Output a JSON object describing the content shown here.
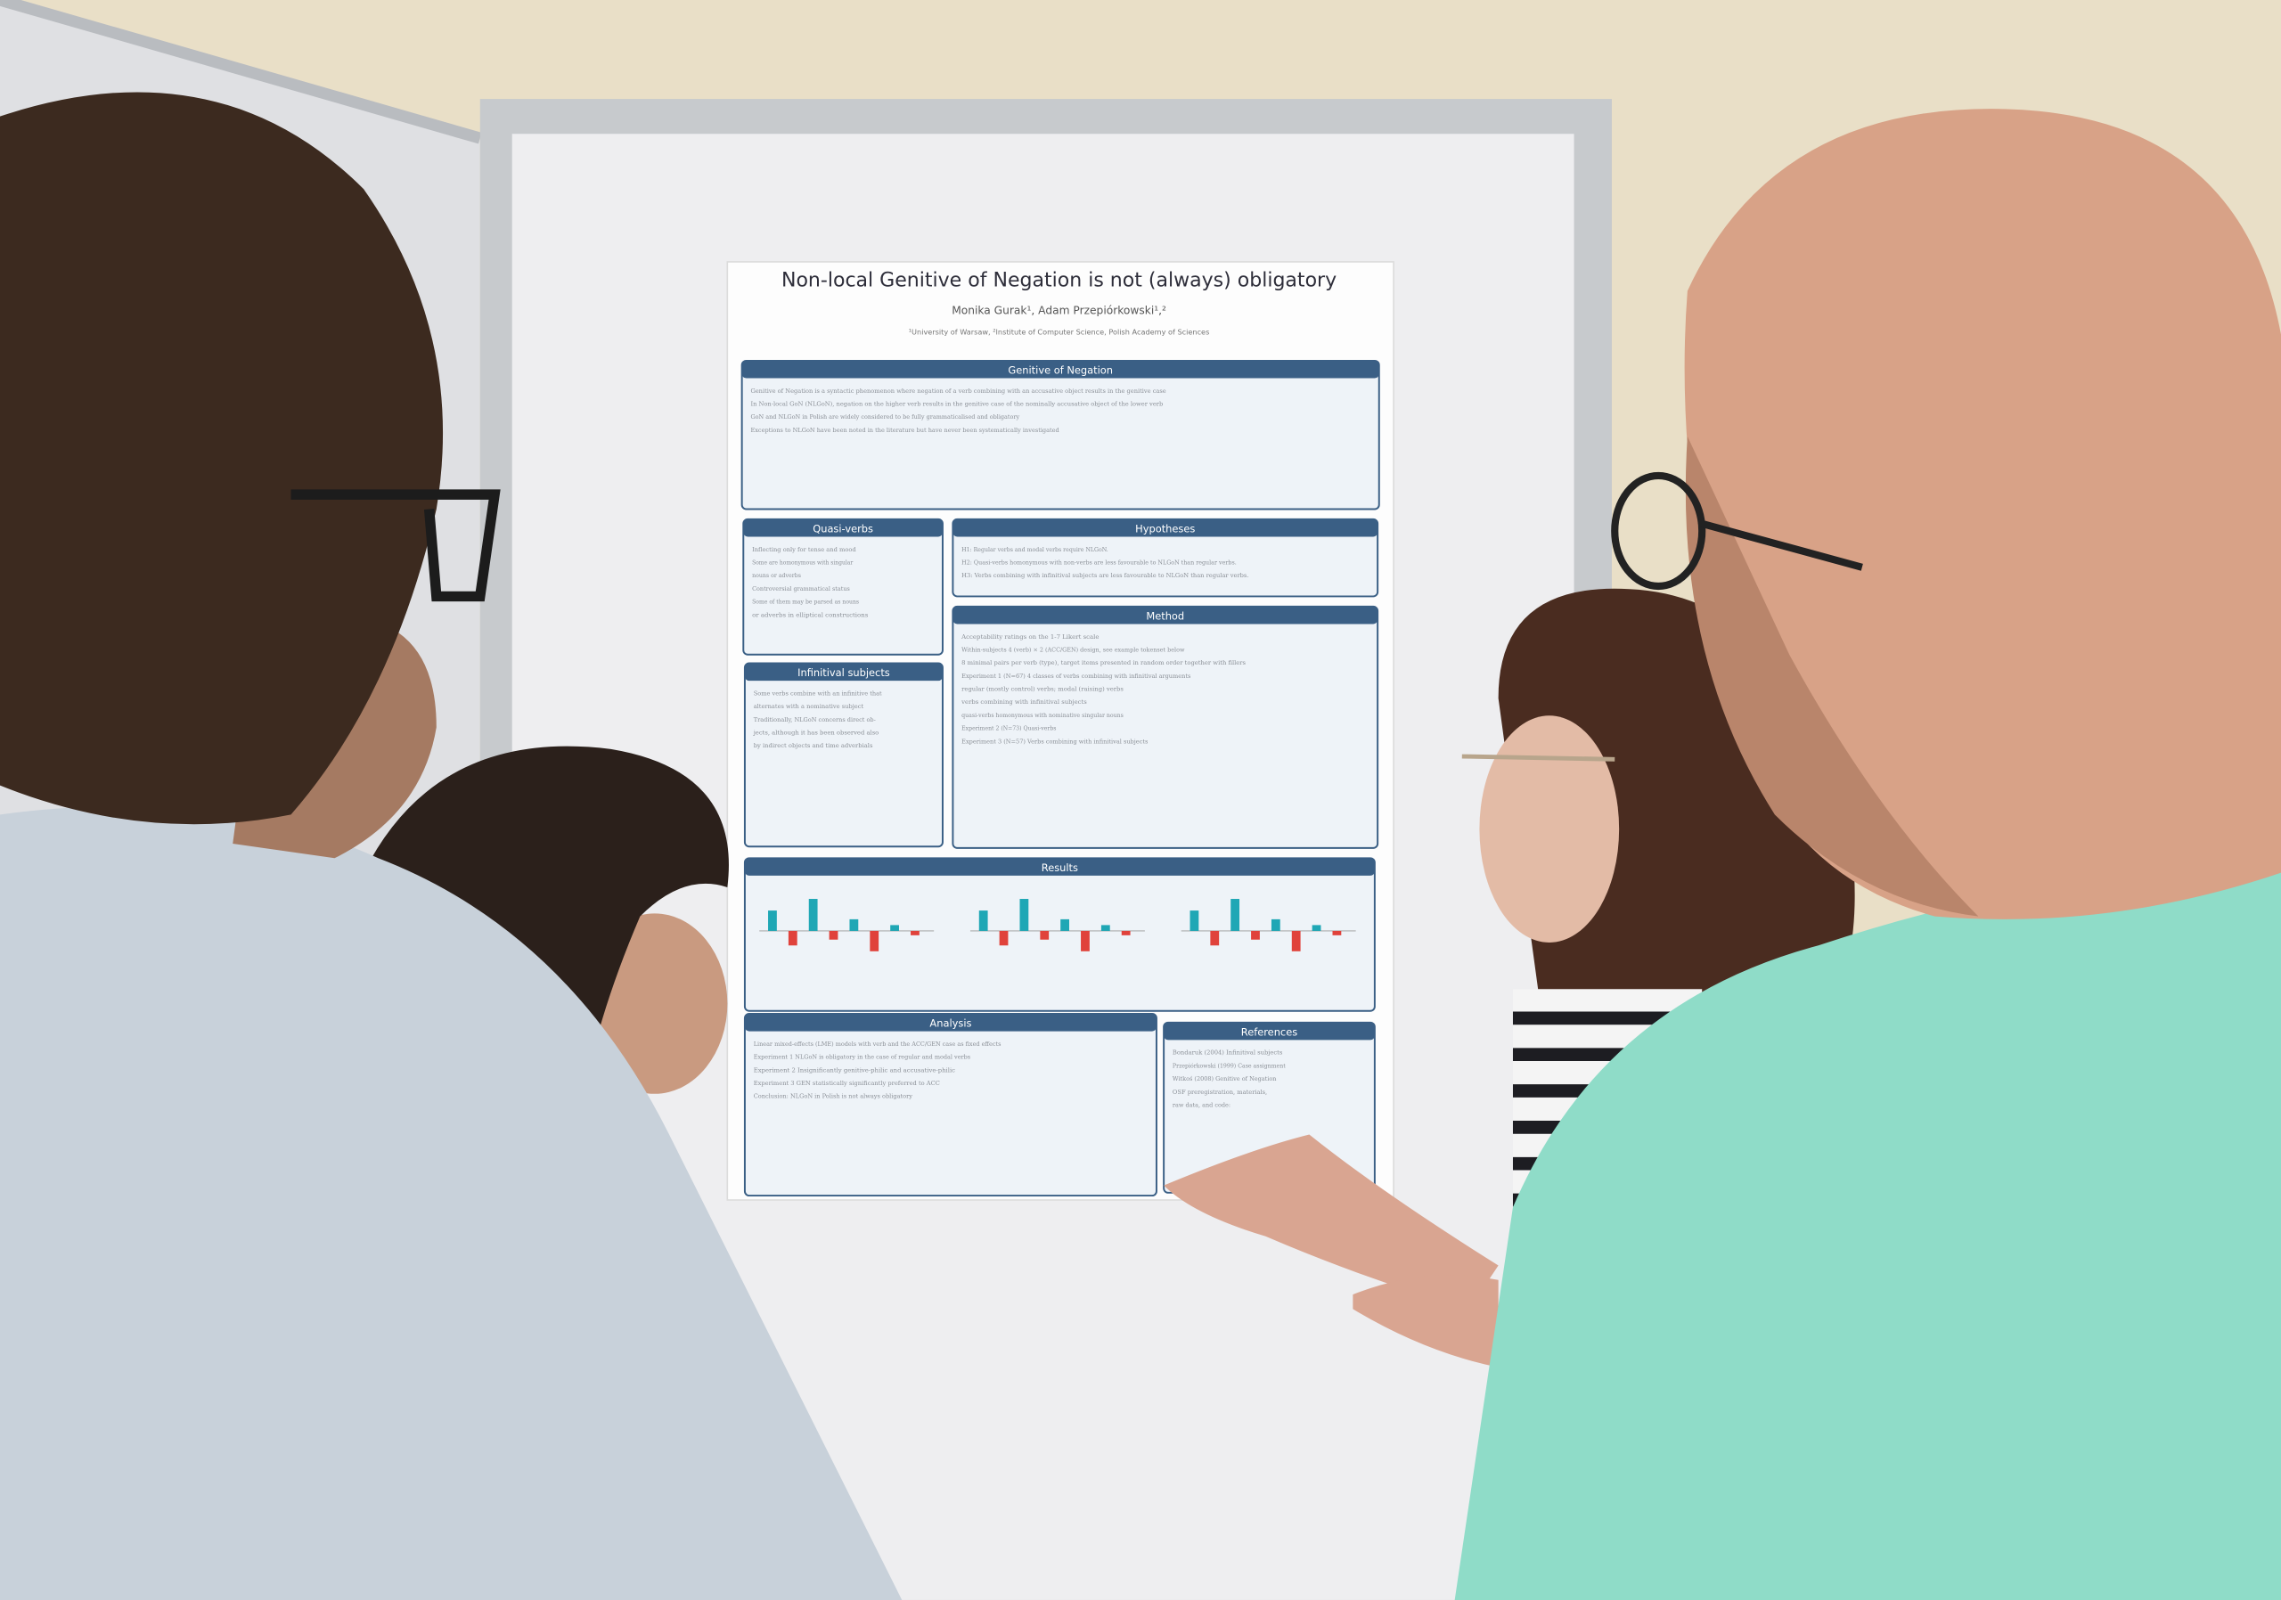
{
  "poster": {
    "title": "Non-local Genitive of Negation is not (always) obligatory",
    "authors": "Monika Gurak¹, Adam Przepiórkowski¹,²",
    "affiliations": "¹University of Warsaw, ²Institute of Computer Science, Polish Academy of Sciences",
    "sections": [
      {
        "heading": "Genitive of Negation",
        "lines": [
          "Genitive of Negation is a syntactic phenomenon where negation of a verb combining with an accusative object results in the genitive case",
          "In Non-local GoN (NLGoN), negation on the higher verb results in the genitive case of the nominally accusative object of the lower verb",
          "GoN and NLGoN in Polish are widely considered to be fully grammaticalised and obligatory",
          "Exceptions to NLGoN have been noted in the literature but have never been systematically investigated"
        ]
      },
      {
        "heading": "Quasi-verbs",
        "lines": [
          "Inflecting only for tense and mood",
          "Some are homonymous with singular",
          "nouns or adverbs",
          "Controversial grammatical status",
          "Some of them may be parsed as nouns",
          "or adverbs in elliptical constructions"
        ]
      },
      {
        "heading": "Hypotheses",
        "lines": [
          "H1: Regular verbs and modal verbs require NLGoN.",
          "H2: Quasi-verbs homonymous with non-verbs are less favourable to NLGoN than regular verbs.",
          "H3: Verbs combining with infinitival subjects are less favourable to NLGoN than regular verbs."
        ]
      },
      {
        "heading": "Method",
        "lines": [
          "Acceptability ratings on the 1-7 Likert scale",
          "Within-subjects 4 (verb) × 2 (ACC/GEN) design, see example tokenset below",
          "8 minimal pairs per verb (type), target items presented in random order together with fillers",
          "Experiment 1 (N=67) 4 classes of verbs combining with infinitival arguments",
          "regular (mostly control) verbs; modal (raising) verbs",
          "verbs combining with infinitival subjects",
          "quasi-verbs homonymous with nominative singular nouns",
          "Experiment 2 (N=73) Quasi-verbs",
          "Experiment 3 (N=57) Verbs combining with infinitival subjects"
        ]
      },
      {
        "heading": "Infinitival subjects",
        "lines": [
          "Some verbs combine with an infinitive that",
          "alternates with a nominative subject",
          "Traditionally, NLGoN concerns direct ob-",
          "jects, although it has been observed also",
          "by indirect objects and time adverbials"
        ]
      },
      {
        "heading": "Results",
        "lines": []
      },
      {
        "heading": "Analysis",
        "lines": [
          "Linear mixed-effects (LME) models with verb and the ACC/GEN case as fixed effects",
          "Experiment 1 NLGoN is obligatory in the case of regular and modal verbs",
          "Experiment 2 Insignificantly genitive-philic and accusative-philic",
          "Experiment 3 GEN statistically significantly preferred to ACC",
          "Conclusion: NLGoN in Polish is not always obligatory"
        ]
      },
      {
        "heading": "References",
        "lines": [
          "Bondaruk (2004) Infinitival subjects",
          "Przepiórkowski (1999) Case assignment",
          "Witkoś (2008) Genitive of Negation",
          "OSF preregistration, materials,",
          "raw data, and code:"
        ]
      }
    ]
  }
}
